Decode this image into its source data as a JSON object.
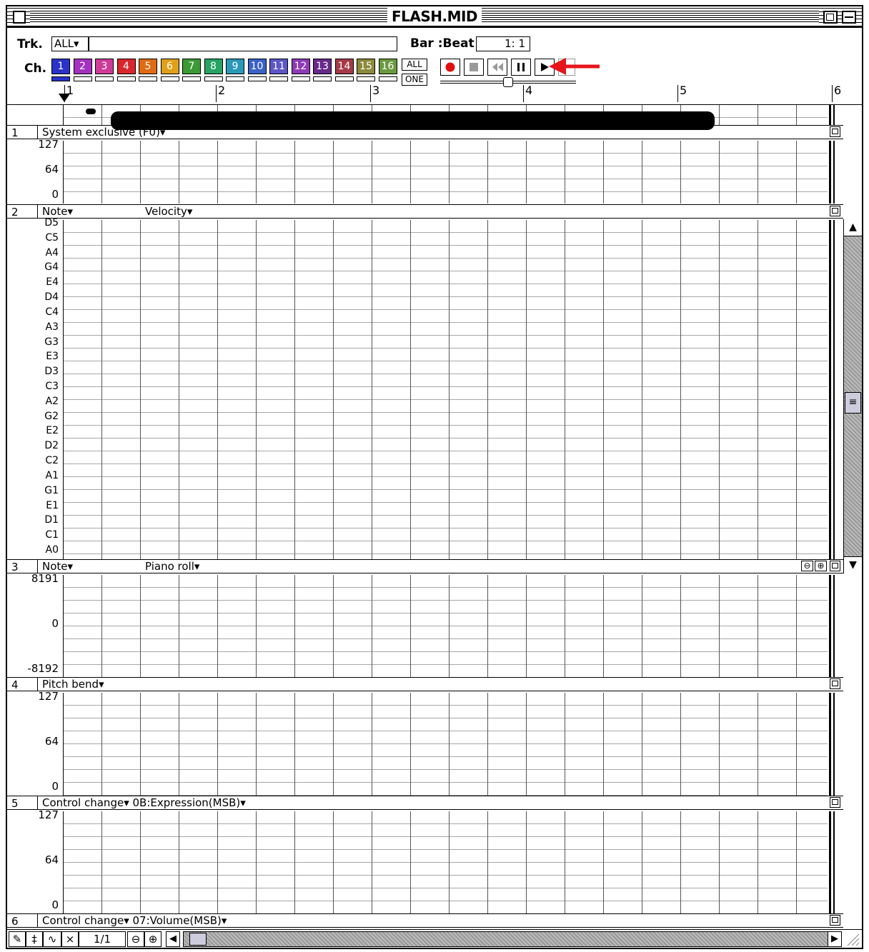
{
  "window": {
    "title": "FLASH.MID"
  },
  "toolbar": {
    "trk_label": "Trk.",
    "trk_value": "ALL▾",
    "ch_label": "Ch.",
    "channels": [
      {
        "label": "1",
        "color": "#2a32c8"
      },
      {
        "label": "2",
        "color": "#a431c0"
      },
      {
        "label": "3",
        "color": "#d03a99"
      },
      {
        "label": "4",
        "color": "#d8262c"
      },
      {
        "label": "5",
        "color": "#e06a12"
      },
      {
        "label": "6",
        "color": "#e0a01a"
      },
      {
        "label": "7",
        "color": "#3b9a34"
      },
      {
        "label": "8",
        "color": "#27a463"
      },
      {
        "label": "9",
        "color": "#2a98b8"
      },
      {
        "label": "10",
        "color": "#3a62c8"
      },
      {
        "label": "11",
        "color": "#5c56c8"
      },
      {
        "label": "12",
        "color": "#8e3ab8"
      },
      {
        "label": "13",
        "color": "#662a8a"
      },
      {
        "label": "14",
        "color": "#a63a48"
      },
      {
        "label": "15",
        "color": "#8c8a3a"
      },
      {
        "label": "16",
        "color": "#6a9a40"
      }
    ],
    "all_label": "ALL",
    "one_label": "ONE",
    "barbeat_label": "Bar :Beat",
    "position": "1:  1"
  },
  "ruler": {
    "bars": [
      "1",
      "2",
      "3",
      "4",
      "5",
      "6"
    ]
  },
  "lanes": [
    {
      "num": "1",
      "title": "System exclusive (F0)▾",
      "title2": "",
      "axis": [
        "127",
        "64",
        "0"
      ]
    },
    {
      "num": "2",
      "title": "Note▾",
      "title2": "Velocity▾",
      "axis": [
        "D5",
        "C5",
        "A4",
        "G4",
        "E4",
        "D4",
        "C4",
        "A3",
        "G3",
        "E3",
        "D3",
        "C3",
        "A2",
        "G2",
        "E2",
        "D2",
        "C2",
        "A1",
        "G1",
        "E1",
        "D1",
        "C1",
        "A0"
      ]
    },
    {
      "num": "3",
      "title": "Note▾",
      "title2": "Piano roll▾",
      "axis": [
        "8191",
        "0",
        "-8192"
      ]
    },
    {
      "num": "4",
      "title": "Pitch bend▾",
      "title2": "",
      "axis": [
        "127",
        "64",
        "0"
      ]
    },
    {
      "num": "5",
      "title": "Control change▾  0B:Expression(MSB)▾",
      "title2": "",
      "axis": [
        "127",
        "64",
        "0"
      ]
    },
    {
      "num": "6",
      "title": "Control change▾  07:Volume(MSB)▾",
      "title2": "",
      "axis": []
    }
  ],
  "bottom": {
    "page": "1/1"
  },
  "icons": {
    "record": "record-icon",
    "stop": "stop-icon",
    "rewind": "rewind-icon",
    "pause": "pause-icon",
    "play": "play-icon"
  },
  "colors": {
    "accent_arrow": "#e8141b"
  }
}
